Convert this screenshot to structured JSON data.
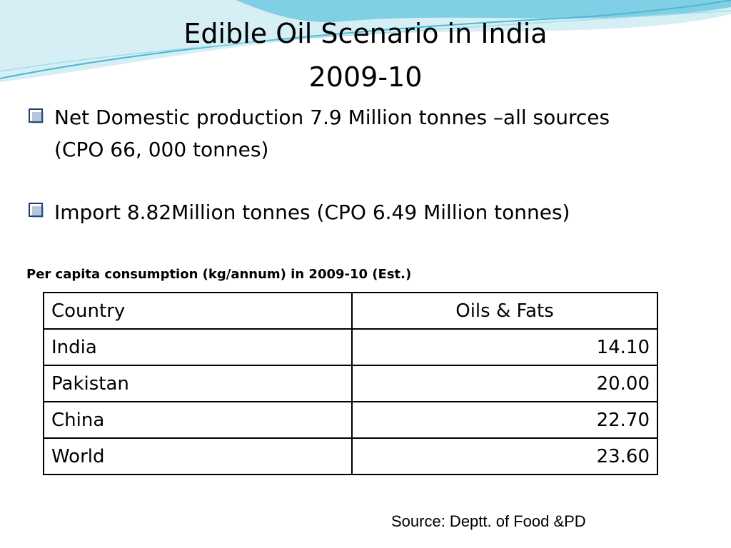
{
  "header": {
    "title_lines": [
      "Edible Oil Scenario in India",
      "2009-10"
    ]
  },
  "bullets": [
    {
      "lines": [
        "Net Domestic production 7.9 Million tonnes –all sources",
        "(CPO 66, 000 tonnes)"
      ]
    },
    {
      "lines": [
        "Import 8.82Million tonnes (CPO 6.49 Million tonnes)"
      ]
    }
  ],
  "table": {
    "caption": "Per capita consumption (kg/annum) in 2009-10 (Est.)",
    "columns": [
      "Country",
      "Oils & Fats"
    ],
    "rows": [
      [
        "India",
        "14.10"
      ],
      [
        "Pakistan",
        "20.00"
      ],
      [
        "China",
        "22.70"
      ],
      [
        "World",
        "23.60"
      ]
    ]
  },
  "source": "Source: Deptt. of Food &PD"
}
